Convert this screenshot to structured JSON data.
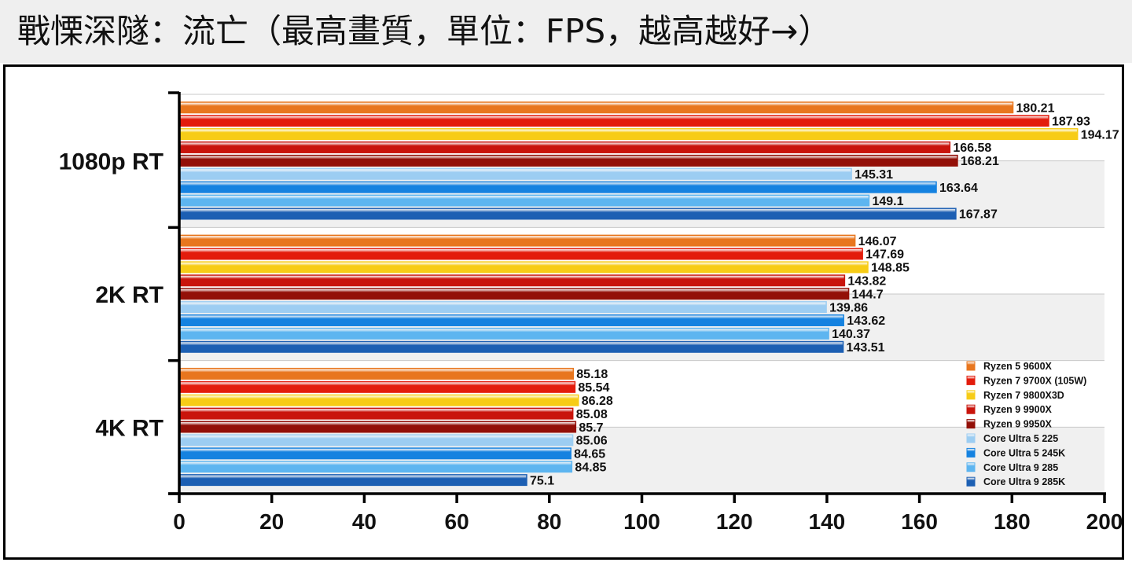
{
  "header": {
    "title": "戰慄深隧：流亡（最高畫質，單位：FPS，越高越好→）"
  },
  "chart_data": {
    "type": "bar",
    "orientation": "horizontal",
    "title": "戰慄深隧：流亡（最高畫質，單位：FPS，越高越好→）",
    "xlim": [
      0,
      200
    ],
    "x_ticks": [
      "0",
      "20",
      "40",
      "60",
      "80",
      "100",
      "120",
      "140",
      "160",
      "180",
      "200"
    ],
    "categories": [
      "1080p RT",
      "2K RT",
      "4K RT"
    ],
    "legend_position": "bottom-right",
    "series": [
      {
        "name": "Ryzen 5 9600X",
        "color": "#e8761e",
        "values": [
          180.21,
          146.07,
          85.18
        ]
      },
      {
        "name": "Ryzen 7 9700X (105W)",
        "color": "#e31c0c",
        "values": [
          187.93,
          147.69,
          85.54
        ]
      },
      {
        "name": "Ryzen 7 9800X3D",
        "color": "#f7cc16",
        "values": [
          194.17,
          148.85,
          86.28
        ]
      },
      {
        "name": "Ryzen 9 9900X",
        "color": "#c9140c",
        "values": [
          166.58,
          143.82,
          85.08
        ]
      },
      {
        "name": "Ryzen 9 9950X",
        "color": "#931008",
        "values": [
          168.21,
          144.7,
          85.7
        ]
      },
      {
        "name": "Core Ultra 5 225",
        "color": "#9ccdf2",
        "values": [
          145.31,
          139.86,
          85.06
        ]
      },
      {
        "name": "Core Ultra 5 245K",
        "color": "#1582e0",
        "values": [
          163.64,
          143.62,
          84.65
        ]
      },
      {
        "name": "Core Ultra 9 285",
        "color": "#5db5f0",
        "values": [
          149.1,
          140.37,
          84.85
        ]
      },
      {
        "name": "Core Ultra 9 285K",
        "color": "#1c5fb3",
        "values": [
          167.87,
          143.51,
          75.1
        ]
      }
    ],
    "value_labels": [
      [
        "180.21",
        "146.07",
        "85.18"
      ],
      [
        "187.93",
        "147.69",
        "85.54"
      ],
      [
        "194.17",
        "148.85",
        "86.28"
      ],
      [
        "166.58",
        "143.82",
        "85.08"
      ],
      [
        "168.21",
        "144.7",
        "85.7"
      ],
      [
        "145.31",
        "139.86",
        "85.06"
      ],
      [
        "163.64",
        "143.62",
        "84.65"
      ],
      [
        "149.1",
        "140.37",
        "84.85"
      ],
      [
        "167.87",
        "143.51",
        "75.1"
      ]
    ]
  }
}
